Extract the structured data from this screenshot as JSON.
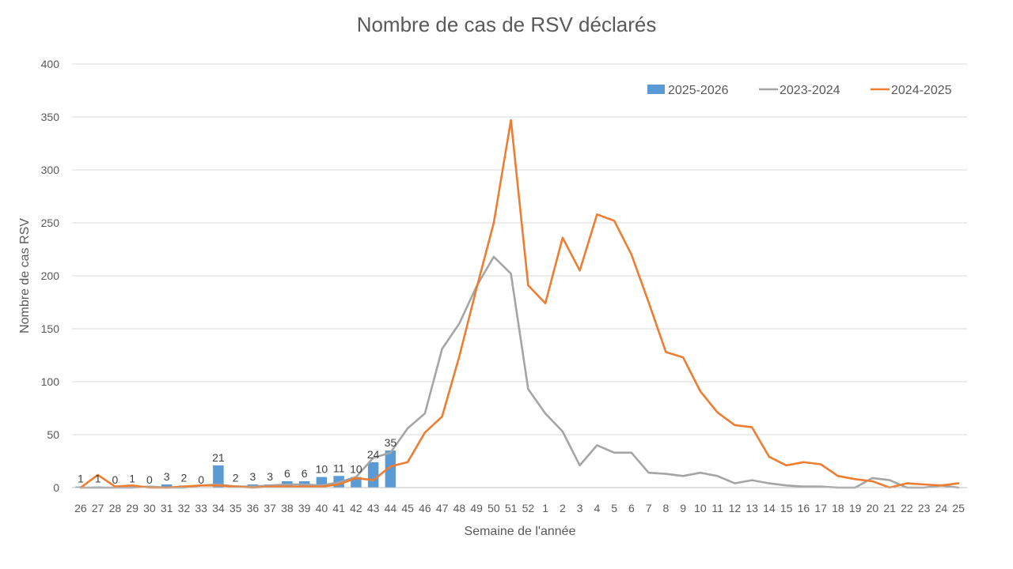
{
  "chart_data": {
    "type": "bar",
    "title": "Nombre de cas de RSV déclarés",
    "xlabel": "Semaine de l'année",
    "ylabel": "Nombre de cas RSV",
    "ylim": [
      0,
      400
    ],
    "yticks": [
      "0",
      "50",
      "100",
      "150",
      "200",
      "250",
      "300",
      "350",
      "400"
    ],
    "grid": true,
    "legend_position": "top-right",
    "categories": [
      "26",
      "27",
      "28",
      "29",
      "30",
      "31",
      "32",
      "33",
      "34",
      "35",
      "36",
      "37",
      "38",
      "39",
      "40",
      "41",
      "42",
      "43",
      "44",
      "45",
      "46",
      "47",
      "48",
      "49",
      "50",
      "51",
      "52",
      "1",
      "2",
      "3",
      "4",
      "5",
      "6",
      "7",
      "8",
      "9",
      "10",
      "11",
      "12",
      "13",
      "14",
      "15",
      "16",
      "17",
      "18",
      "19",
      "20",
      "21",
      "22",
      "23",
      "24",
      "25"
    ],
    "series": [
      {
        "name": "2025-2026",
        "type": "bar",
        "color": "#5b9bd5",
        "values": [
          1,
          1,
          0,
          1,
          0,
          3,
          2,
          0,
          21,
          2,
          3,
          3,
          6,
          6,
          10,
          11,
          10,
          24,
          35,
          null,
          null,
          null,
          null,
          null,
          null,
          null,
          null,
          null,
          null,
          null,
          null,
          null,
          null,
          null,
          null,
          null,
          null,
          null,
          null,
          null,
          null,
          null,
          null,
          null,
          null,
          null,
          null,
          null,
          null,
          null,
          null,
          null
        ]
      },
      {
        "name": "2023-2024",
        "type": "line",
        "color": "#a5a5a5",
        "values": [
          0,
          0,
          0,
          0,
          1,
          0,
          0,
          2,
          3,
          1,
          1,
          2,
          3,
          3,
          2,
          5,
          10,
          28,
          33,
          56,
          70,
          131,
          155,
          190,
          218,
          202,
          93,
          70,
          53,
          21,
          40,
          33,
          33,
          14,
          13,
          11,
          14,
          11,
          4,
          7,
          4,
          2,
          1,
          1,
          0,
          0,
          9,
          7,
          0,
          0,
          2,
          0
        ]
      },
      {
        "name": "2024-2025",
        "type": "line",
        "color": "#ed7d31",
        "values": [
          0,
          12,
          1,
          2,
          0,
          0,
          1,
          2,
          2,
          1,
          0,
          1,
          1,
          1,
          1,
          3,
          9,
          7,
          20,
          24,
          52,
          67,
          124,
          188,
          250,
          347,
          191,
          174,
          236,
          205,
          258,
          252,
          220,
          175,
          128,
          123,
          91,
          71,
          59,
          57,
          29,
          21,
          24,
          22,
          11,
          8,
          6,
          0,
          4,
          3,
          2,
          4
        ]
      }
    ]
  }
}
